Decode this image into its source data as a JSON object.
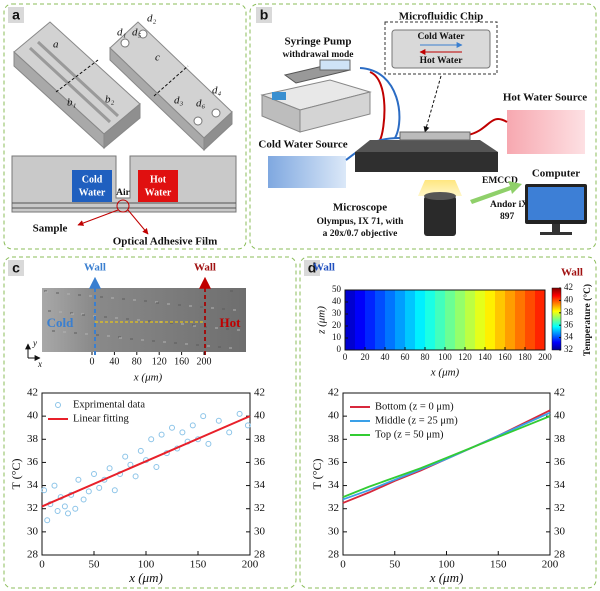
{
  "panel_a": {
    "letter": "a",
    "chip_labels": [
      "a",
      "b₁",
      "b₂",
      "d₁",
      "d₅",
      "d₂",
      "c",
      "d₃",
      "d₆",
      "d₄"
    ],
    "cold": [
      "Cold",
      "Water"
    ],
    "hot": [
      "Hot",
      "Water"
    ],
    "air": "Air",
    "sample": "Sample",
    "film": "Optical Adhesive Film"
  },
  "panel_b": {
    "letter": "b",
    "pump_title": "Syringe Pump",
    "pump_mode": "withdrawal mode",
    "chip_title": "Microfluidic Chip",
    "chip_cold": "Cold Water",
    "chip_hot": "Hot Water",
    "hot_source": "Hot Water Source",
    "cold_source": "Cold Water Source",
    "microscope": "Microscope",
    "microscope_detail": [
      "Olympus, IX 71, with",
      "a 20x/0.7 objective"
    ],
    "camera": "EMCCD",
    "camera_detail": [
      "Andor iXon,",
      "897"
    ],
    "computer": "Computer"
  },
  "panel_c": {
    "letter": "c",
    "walls": [
      "Wall",
      "Wall"
    ],
    "cold": "Cold",
    "hot": "Hot",
    "axis_y": "y",
    "axis_x": "x"
  },
  "panel_d": {
    "letter": "d",
    "walls": [
      "Wall",
      "Wall"
    ]
  },
  "chart_data": [
    {
      "type": "image",
      "xlabel": "x (μm)",
      "xlim": [
        0,
        200
      ],
      "xticks": [
        0,
        40,
        80,
        120,
        160,
        200
      ]
    },
    {
      "type": "scatter",
      "xlabel": "x (μm)",
      "ylabel": "T (°C)",
      "xlim": [
        0,
        200
      ],
      "xticks": [
        0,
        50,
        100,
        150,
        200
      ],
      "ylim": [
        28,
        42
      ],
      "yticks": [
        28,
        30,
        32,
        34,
        36,
        38,
        40,
        42
      ],
      "y2lim": [
        28,
        42
      ],
      "y2ticks": [
        28,
        30,
        32,
        34,
        36,
        38,
        40,
        42
      ],
      "legend": "upper left",
      "series": [
        {
          "name": "Exprimental data",
          "kind": "scatter",
          "color": "#8cc4e8",
          "x": [
            2,
            5,
            8,
            12,
            15,
            18,
            22,
            25,
            28,
            32,
            35,
            40,
            45,
            50,
            55,
            60,
            65,
            70,
            75,
            80,
            85,
            90,
            95,
            100,
            105,
            110,
            115,
            120,
            125,
            130,
            135,
            140,
            145,
            150,
            155,
            160,
            170,
            180,
            190,
            198
          ],
          "values": [
            33.6,
            31,
            32.4,
            34,
            31.8,
            33,
            32.2,
            31.6,
            33.2,
            32,
            34.5,
            32.8,
            33.5,
            35,
            33.8,
            34.5,
            35.5,
            33.6,
            35,
            36.5,
            35.8,
            34.8,
            37,
            36.2,
            38,
            35.6,
            38.4,
            36.8,
            39,
            37.2,
            38.6,
            37.8,
            39.2,
            38,
            40,
            37.6,
            39.6,
            38.6,
            40.2,
            39.2
          ]
        },
        {
          "name": "Linear fitting",
          "kind": "line",
          "color": "#e8202a",
          "x": [
            0,
            200
          ],
          "values": [
            32.2,
            40
          ]
        }
      ]
    },
    {
      "type": "heatmap",
      "xlabel": "x (μm)",
      "ylabel": "z (μm)",
      "xlim": [
        0,
        200
      ],
      "xticks": [
        0,
        20,
        40,
        60,
        80,
        100,
        120,
        140,
        160,
        180,
        200
      ],
      "ylim": [
        0,
        50
      ],
      "yticks": [
        0,
        10,
        20,
        30,
        40,
        50
      ],
      "colorbar_label": "Temperature (°C)",
      "zlim": [
        32,
        42
      ],
      "zticks": [
        32,
        34,
        36,
        38,
        40,
        42
      ],
      "colormap": "jet",
      "x": [
        5,
        15,
        25,
        35,
        45,
        55,
        65,
        75,
        85,
        95,
        105,
        115,
        125,
        135,
        145,
        155,
        165,
        175,
        185,
        195
      ],
      "values": [
        32.8,
        33.2,
        33.6,
        34,
        34.4,
        34.8,
        35.2,
        35.6,
        36,
        36.4,
        36.8,
        37.2,
        37.6,
        38,
        38.4,
        38.8,
        39.2,
        39.6,
        40,
        40.4
      ]
    },
    {
      "type": "line",
      "xlabel": "x (μm)",
      "ylabel": "T (°C)",
      "xlim": [
        0,
        200
      ],
      "xticks": [
        0,
        50,
        100,
        150,
        200
      ],
      "ylim": [
        28,
        42
      ],
      "yticks": [
        28,
        30,
        32,
        34,
        36,
        38,
        40,
        42
      ],
      "y2lim": [
        28,
        42
      ],
      "y2ticks": [
        28,
        30,
        32,
        34,
        36,
        38,
        40,
        42
      ],
      "legend": "upper left",
      "x": [
        0,
        25,
        50,
        75,
        100,
        125,
        150,
        175,
        200
      ],
      "series": [
        {
          "name": "Bottom (z = 0 μm)",
          "color": "#d8283c",
          "values": [
            32.5,
            33.4,
            34.4,
            35.3,
            36.3,
            37.3,
            38.3,
            39.4,
            40.5
          ]
        },
        {
          "name": "Middle (z = 25 μm)",
          "color": "#3aa0e8",
          "values": [
            32.8,
            33.6,
            34.5,
            35.4,
            36.3,
            37.3,
            38.3,
            39.3,
            40.3
          ]
        },
        {
          "name": "Top (z = 50 μm)",
          "color": "#33cc33",
          "values": [
            33.0,
            33.9,
            34.7,
            35.5,
            36.4,
            37.3,
            38.2,
            39.1,
            40.0
          ]
        }
      ]
    }
  ]
}
